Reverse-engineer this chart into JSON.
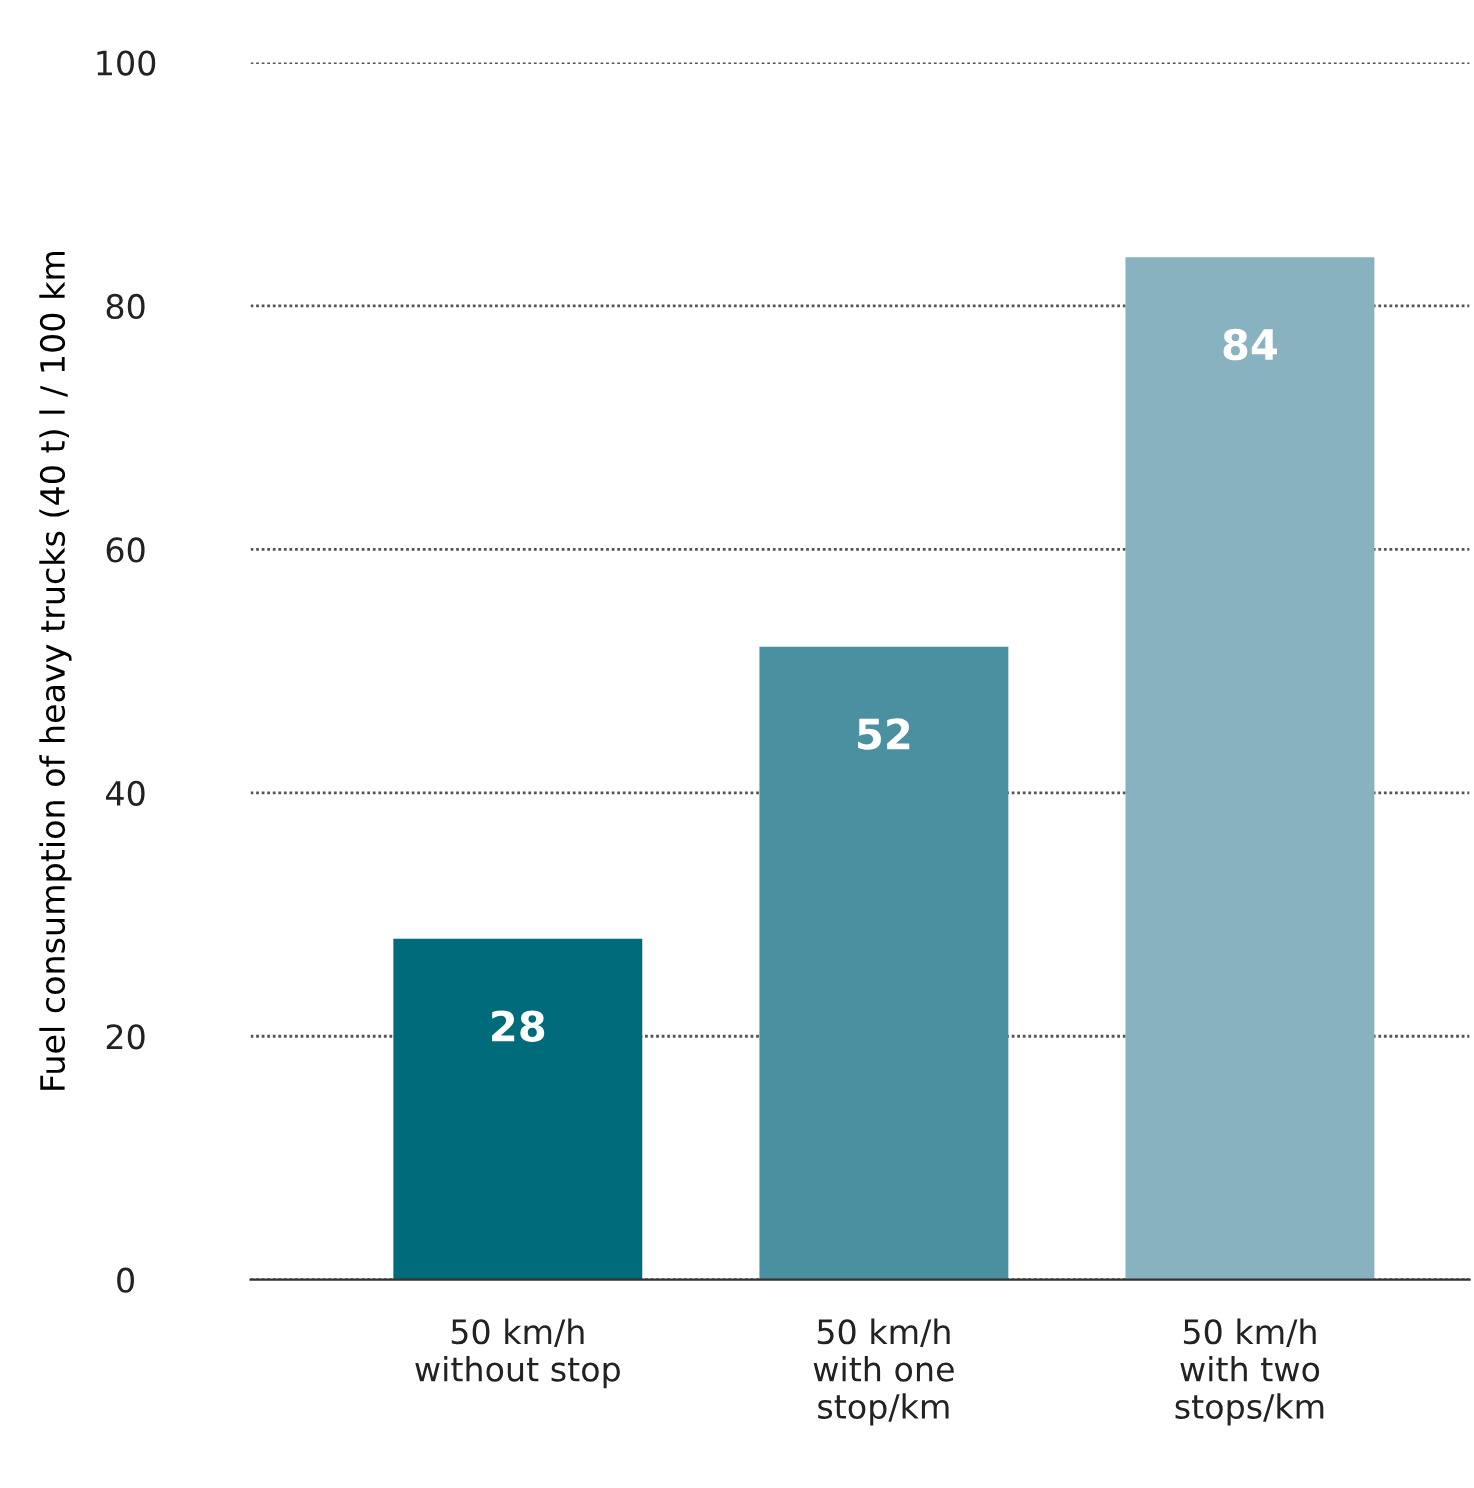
{
  "chart_data": {
    "type": "bar",
    "ylabel": "Fuel consumption of heavy trucks (40 t) l / 100 km",
    "categories": [
      "50 km/h\nwithout stop",
      "50 km/h\nwith one\nstop/km",
      "50 km/h\nwith two\nstops/km"
    ],
    "values": [
      28,
      52,
      84
    ],
    "colors": [
      "#006b7b",
      "#4a90a0",
      "#88b2c0"
    ],
    "ylim": [
      0,
      100
    ],
    "yticks": [
      0,
      20,
      40,
      60,
      80,
      100
    ],
    "grid": "y",
    "data_labels": true
  }
}
